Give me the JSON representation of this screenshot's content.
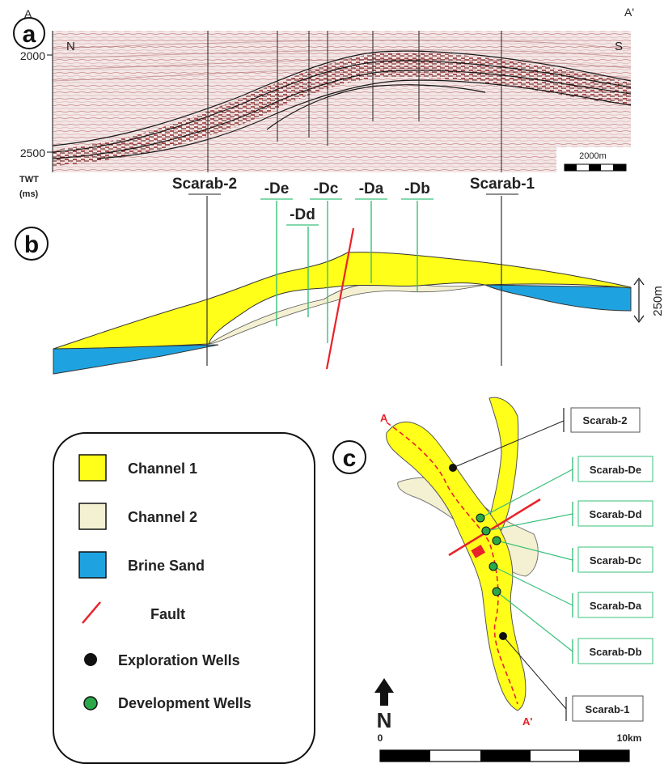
{
  "panels": {
    "a": "a",
    "b": "b",
    "c": "c"
  },
  "seismic": {
    "corner_left": "A",
    "corner_right": "A'",
    "north": "N",
    "south": "S",
    "tick_top": "2000",
    "tick_bottom": "2500",
    "axis_unit_1": "TWT",
    "axis_unit_2": "(ms)",
    "scale_label": "2000m"
  },
  "wells_section": {
    "scarab2": "Scarab-2",
    "de": "-De",
    "dd": "-Dd",
    "dc": "-Dc",
    "da": "-Da",
    "db": "-Db",
    "scarab1": "Scarab-1"
  },
  "thickness_label": "250m",
  "legend": {
    "channel1": "Channel 1",
    "channel2": "Channel 2",
    "brine": "Brine Sand",
    "fault": "Fault",
    "exploration": "Exploration Wells",
    "development": "Development Wells"
  },
  "map": {
    "end_a": "A",
    "end_a_prime": "A'",
    "north": "N",
    "scale_start": "0",
    "scale_end": "10km",
    "boxes": {
      "scarab2": "Scarab-2",
      "de": "Scarab-De",
      "dd": "Scarab-Dd",
      "dc": "Scarab-Dc",
      "da": "Scarab-Da",
      "db": "Scarab-Db",
      "scarab1": "Scarab-1"
    }
  },
  "colors": {
    "channel1": "#ffff1a",
    "channel2": "#f4f1d2",
    "brine": "#1fa3e0",
    "fault": "#e8232a",
    "exploration": "#111111",
    "development": "#2aa84a",
    "well_line_dev": "#39c07a"
  }
}
